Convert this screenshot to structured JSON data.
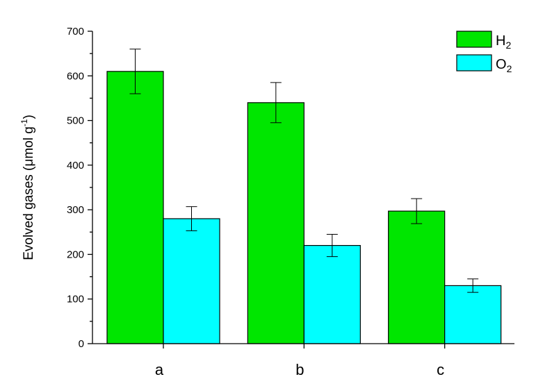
{
  "chart_data": {
    "type": "bar",
    "title": "",
    "xlabel": "",
    "ylabel": "Evolved gases (µmol g⁻¹)",
    "ylabel_main": "Evolved gases (",
    "ylabel_unit": "μmol g",
    "ylabel_sup": "-1",
    "ylabel_close": ")",
    "ylim": [
      0,
      700
    ],
    "yticks": [
      0,
      100,
      200,
      300,
      400,
      500,
      600,
      700
    ],
    "categories": [
      "a",
      "b",
      "c"
    ],
    "series": [
      {
        "name": "H2",
        "label_main": "H",
        "label_sub": "2",
        "color": "#00e600",
        "values": [
          610,
          540,
          297
        ],
        "errors": [
          50,
          45,
          28
        ]
      },
      {
        "name": "O2",
        "label_main": "O",
        "label_sub": "2",
        "color": "#00ffff",
        "values": [
          280,
          220,
          130
        ],
        "errors": [
          27,
          25,
          15
        ]
      }
    ],
    "legend_position": "top-right",
    "grid": false
  }
}
